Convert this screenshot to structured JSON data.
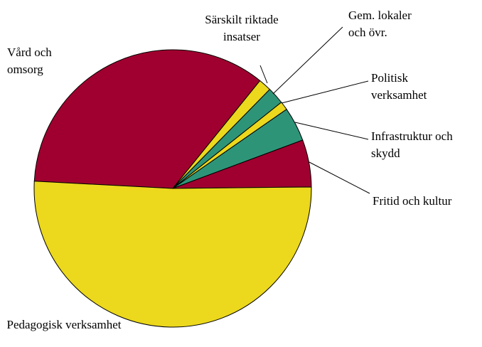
{
  "chart_data": {
    "type": "pie",
    "categories": [
      "Pedagogisk verksamhet",
      "Fritid och kultur",
      "Infrastruktur och skydd",
      "Politisk verksamhet",
      "Gem. lokaler och övr.",
      "Särskilt riktade insatser",
      "Vård och omsorg"
    ],
    "values": [
      51,
      5.5,
      4,
      1,
      2,
      1.5,
      35
    ],
    "colors": [
      "#ecd81c",
      "#a0002f",
      "#2e9478",
      "#ecd81c",
      "#2e9478",
      "#ecd81c",
      "#a0002f"
    ]
  }
}
